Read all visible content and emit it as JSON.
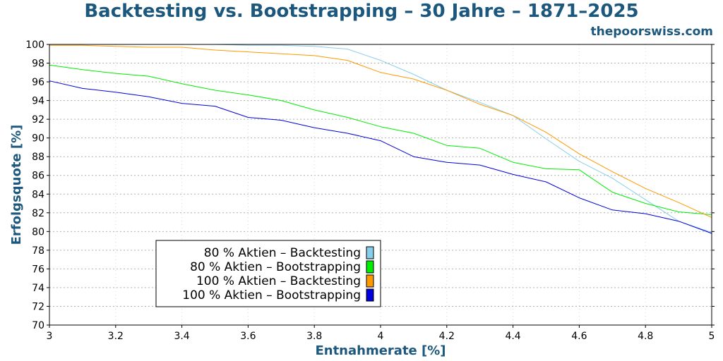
{
  "title": "Backtesting vs. Bootstrapping – 30 Jahre – 1871–2025",
  "watermark": "thepoorswiss.com",
  "chart_data": {
    "type": "line",
    "title": "Backtesting vs. Bootstrapping – 30 Jahre – 1871–2025",
    "xlabel": "Entnahmerate [%]",
    "ylabel": "Erfolgsquote [%]",
    "xlim": [
      3,
      5
    ],
    "ylim": [
      70,
      100
    ],
    "xticks": [
      "3",
      "3.2",
      "3.4",
      "3.6",
      "3.8",
      "4",
      "4.2",
      "4.4",
      "4.6",
      "4.8",
      "5"
    ],
    "yticks": [
      "70",
      "72",
      "74",
      "76",
      "78",
      "80",
      "82",
      "84",
      "86",
      "88",
      "90",
      "92",
      "94",
      "96",
      "98",
      "100"
    ],
    "grid": true,
    "legend_position": "bottom-left",
    "x": [
      3.0,
      3.1,
      3.2,
      3.3,
      3.4,
      3.5,
      3.6,
      3.7,
      3.8,
      3.9,
      4.0,
      4.1,
      4.2,
      4.3,
      4.4,
      4.5,
      4.6,
      4.7,
      4.8,
      4.9,
      5.0
    ],
    "series": [
      {
        "name": "80 % Aktien – Backtesting",
        "color": "#87ceeb",
        "values": [
          100,
          100,
          100,
          100,
          100,
          100,
          99.9,
          99.9,
          99.8,
          99.5,
          98.3,
          96.8,
          95.1,
          93.8,
          92.4,
          89.9,
          87.5,
          85.7,
          83.4,
          81.1,
          79.9
        ]
      },
      {
        "name": "80 % Aktien – Bootstrapping",
        "color": "#00ee00",
        "values": [
          97.8,
          97.3,
          96.9,
          96.6,
          95.8,
          95.1,
          94.6,
          94.0,
          93.0,
          92.2,
          91.2,
          90.5,
          89.2,
          88.9,
          87.4,
          86.7,
          86.6,
          84.2,
          83.0,
          82.1,
          81.8
        ]
      },
      {
        "name": "100 % Aktien – Backtesting",
        "color": "#ff9900",
        "values": [
          99.9,
          99.9,
          99.8,
          99.7,
          99.7,
          99.4,
          99.2,
          99.0,
          98.8,
          98.3,
          97.0,
          96.3,
          95.1,
          93.6,
          92.4,
          90.6,
          88.3,
          86.4,
          84.6,
          83.1,
          81.5
        ]
      },
      {
        "name": "100 % Aktien – Bootstrapping",
        "color": "#0000dd",
        "values": [
          96.1,
          95.3,
          94.9,
          94.4,
          93.7,
          93.4,
          92.2,
          91.9,
          91.1,
          90.5,
          89.7,
          88.0,
          87.4,
          87.1,
          86.1,
          85.3,
          83.6,
          82.3,
          81.9,
          81.1,
          79.8
        ]
      }
    ]
  }
}
